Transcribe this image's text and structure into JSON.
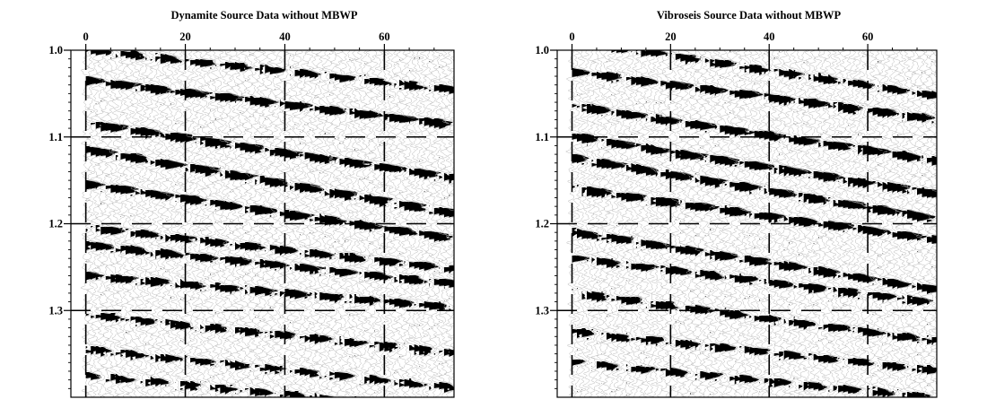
{
  "chart_data": [
    {
      "type": "seismic-wiggle",
      "title": "Dynamite Source Data without MBWP",
      "xlabel": "",
      "ylabel": "",
      "x_ticks": [
        0,
        20,
        40,
        60
      ],
      "y_ticks": [
        "1.0",
        "1.1",
        "1.2",
        "1.3"
      ],
      "xlim": [
        -3,
        74
      ],
      "ylim": [
        1.0,
        1.4
      ],
      "grid": "dashed",
      "traces": 75,
      "events": [
        {
          "t0": 1.0,
          "slope": 0.00062,
          "strength": 0.75
        },
        {
          "t0": 1.035,
          "slope": 0.0007,
          "strength": 1.0
        },
        {
          "t0": 1.085,
          "slope": 0.00085,
          "strength": 1.0
        },
        {
          "t0": 1.115,
          "slope": 0.001,
          "strength": 1.0
        },
        {
          "t0": 1.155,
          "slope": 0.00085,
          "strength": 1.0
        },
        {
          "t0": 1.205,
          "slope": 0.00065,
          "strength": 0.85
        },
        {
          "t0": 1.225,
          "slope": 0.0006,
          "strength": 0.9
        },
        {
          "t0": 1.26,
          "slope": 0.0005,
          "strength": 0.85
        },
        {
          "t0": 1.305,
          "slope": 0.0006,
          "strength": 0.75
        },
        {
          "t0": 1.345,
          "slope": 0.0006,
          "strength": 0.7
        },
        {
          "t0": 1.375,
          "slope": 0.00055,
          "strength": 0.7
        }
      ]
    },
    {
      "type": "seismic-wiggle",
      "title": "Vibroseis Source Data without MBWP",
      "xlabel": "",
      "ylabel": "",
      "x_ticks": [
        0,
        20,
        40,
        60
      ],
      "y_ticks": [
        "1.0",
        "1.1",
        "1.2",
        "1.3"
      ],
      "xlim": [
        -3,
        74
      ],
      "ylim": [
        1.0,
        1.4
      ],
      "grid": "dashed",
      "traces": 75,
      "events": [
        {
          "t0": 0.99,
          "slope": 0.00085,
          "strength": 0.8
        },
        {
          "t0": 1.025,
          "slope": 0.00075,
          "strength": 0.95
        },
        {
          "t0": 1.065,
          "slope": 0.00085,
          "strength": 1.0
        },
        {
          "t0": 1.1,
          "slope": 0.0009,
          "strength": 1.0
        },
        {
          "t0": 1.125,
          "slope": 0.00095,
          "strength": 1.0
        },
        {
          "t0": 1.16,
          "slope": 0.0008,
          "strength": 1.0
        },
        {
          "t0": 1.21,
          "slope": 0.0009,
          "strength": 0.95
        },
        {
          "t0": 1.24,
          "slope": 0.0007,
          "strength": 0.85
        },
        {
          "t0": 1.28,
          "slope": 0.00075,
          "strength": 0.8
        },
        {
          "t0": 1.325,
          "slope": 0.0006,
          "strength": 0.75
        },
        {
          "t0": 1.36,
          "slope": 0.00055,
          "strength": 0.7
        }
      ]
    }
  ]
}
